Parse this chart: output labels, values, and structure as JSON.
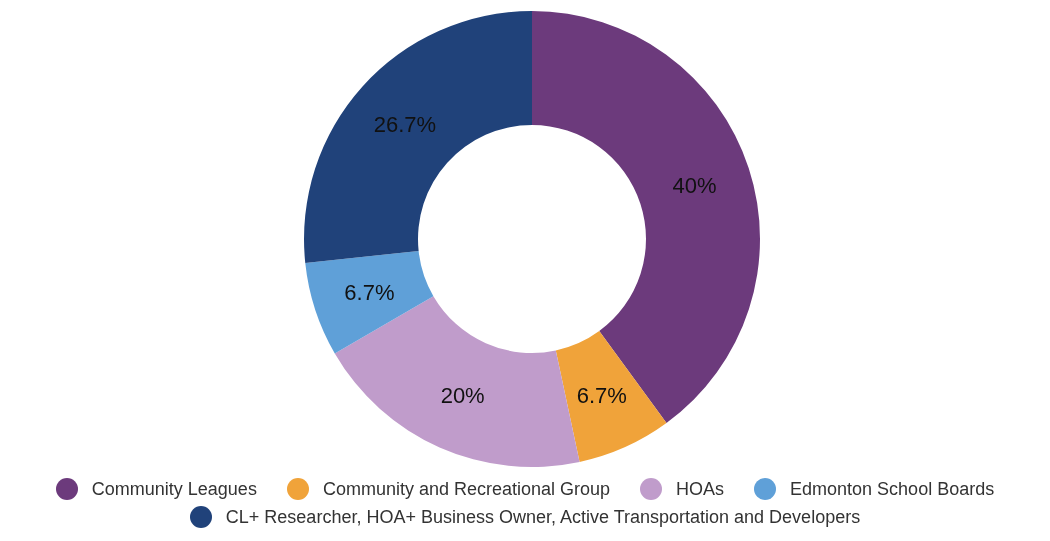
{
  "chart_data": {
    "type": "donut",
    "categories": [
      "Community Leagues",
      "Community and Recreational Group",
      "HOAs",
      "Edmonton School Boards",
      "CL+ Researcher, HOA+ Business Owner, Active Transportation and Developers"
    ],
    "values": [
      40,
      6.7,
      20,
      6.7,
      26.7
    ],
    "colors": [
      "#6c3a7c",
      "#f0a33a",
      "#c09ccb",
      "#5fa0d8",
      "#20427a"
    ],
    "value_labels": [
      "40%",
      "6.7%",
      "20%",
      "6.7%",
      "26.7%"
    ],
    "legend": "bottom"
  }
}
